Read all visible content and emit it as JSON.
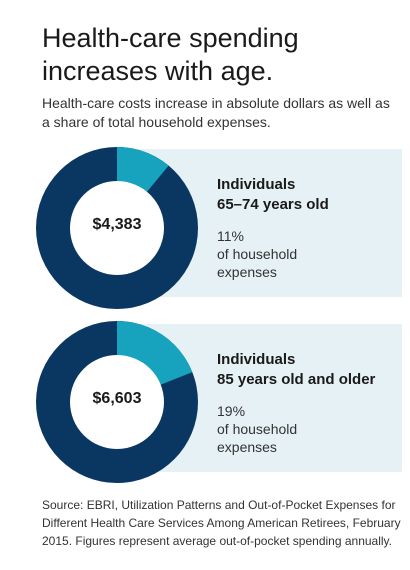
{
  "title": "Health-care spending increases with age.",
  "subtitle": "Health-care costs increase in absolute dollars as well as a share of total household expenses.",
  "colors": {
    "primary": "#0a3761",
    "accent": "#17a3bd",
    "panel": "#e6f1f6"
  },
  "chart_data": [
    {
      "type": "pie",
      "center_label": "$4,383",
      "group_lines": [
        "Individuals",
        "65–74 years old"
      ],
      "share_value": 11,
      "share_label": "11%",
      "share_text_lines": [
        "of household",
        "expenses"
      ]
    },
    {
      "type": "pie",
      "center_label": "$6,603",
      "group_lines": [
        "Individuals",
        "85 years old and older"
      ],
      "share_value": 19,
      "share_label": "19%",
      "share_text_lines": [
        "of household",
        "expenses"
      ]
    }
  ],
  "source": "Source: EBRI, Utilization Patterns and Out-of-Pocket Expenses for Different Health Care Services Among American Retirees, February 2015. Figures represent average out-of-pocket spending annually."
}
